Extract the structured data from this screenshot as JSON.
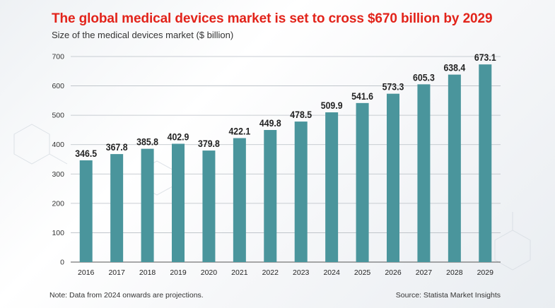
{
  "title": "The global medical devices market is set to cross $670 billion by 2029",
  "subtitle": "Size of the medical devices market ($ billion)",
  "note": "Note: Data from 2024 onwards are projections.",
  "source": "Source: Statista Market Insights",
  "colors": {
    "title": "#e2231a",
    "bar": "#4a959c",
    "grid": "#b8bec4",
    "text": "#222222"
  },
  "chart_data": {
    "type": "bar",
    "title": "The global medical devices market is set to cross $670 billion by 2029",
    "subtitle": "Size of the medical devices market ($ billion)",
    "categories": [
      "2016",
      "2017",
      "2018",
      "2019",
      "2020",
      "2021",
      "2022",
      "2023",
      "2024",
      "2025",
      "2026",
      "2027",
      "2028",
      "2029"
    ],
    "values": [
      346.5,
      367.8,
      385.8,
      402.9,
      379.8,
      422.1,
      449.8,
      478.5,
      509.9,
      541.6,
      573.3,
      605.3,
      638.4,
      673.1
    ],
    "data_labels": [
      "346.5",
      "367.8",
      "385.8",
      "402.9",
      "379.8",
      "422.1",
      "449.8",
      "478.5",
      "509.9",
      "541.6",
      "573.3",
      "605.3",
      "638.4",
      "673.1"
    ],
    "ylim": [
      0,
      700
    ],
    "yticks": [
      0,
      100,
      200,
      300,
      400,
      500,
      600,
      700
    ],
    "xlabel": "",
    "ylabel": "",
    "grid": true,
    "legend": "none"
  }
}
